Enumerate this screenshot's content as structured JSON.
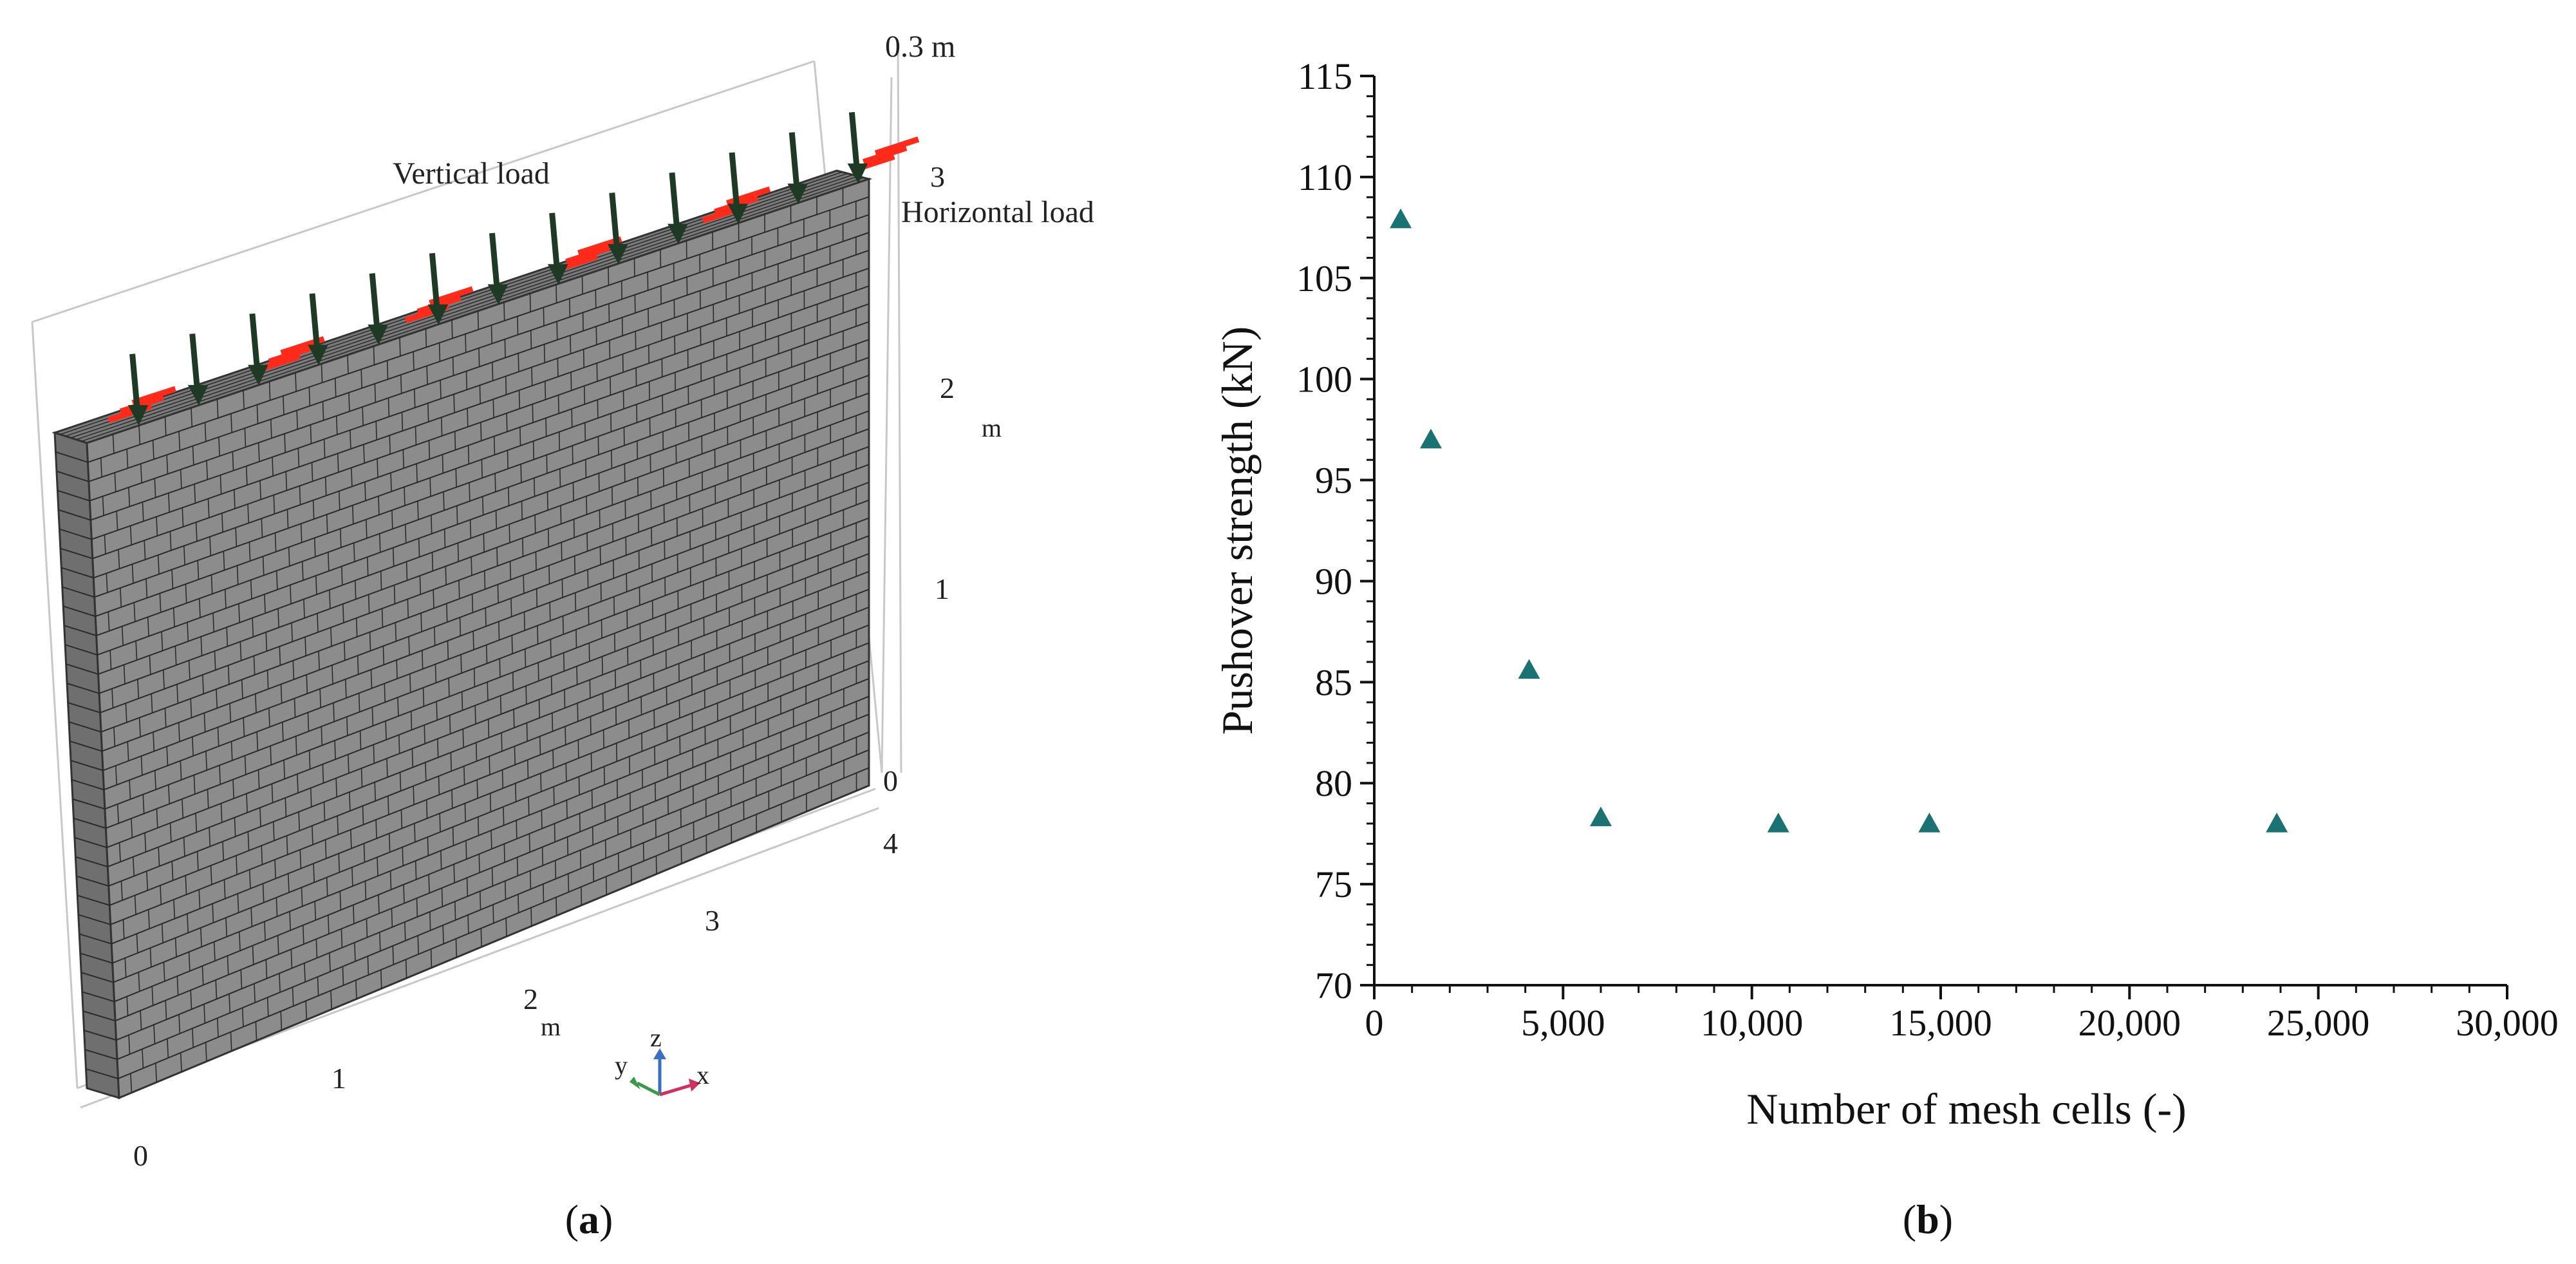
{
  "panel_a": {
    "label": "a",
    "vertical_load_label": "Vertical load",
    "horizontal_load_label": "Horizontal load",
    "thickness_label": "0.3 m",
    "z_ticks": [
      "0",
      "1",
      "2",
      "3"
    ],
    "z_unit": "m",
    "x_ticks": [
      "0",
      "1",
      "2",
      "3",
      "4"
    ],
    "x_unit": "m",
    "triad": {
      "x": "x",
      "y": "y",
      "z": "z"
    },
    "colors": {
      "mesh_face": "#8c8c8c",
      "mesh_lines": "#2b2b2b",
      "load_arrow": "#1e3a24",
      "horizontal_load": "#ff2a1a"
    }
  },
  "panel_b": {
    "label": "b",
    "chart_data": {
      "type": "scatter",
      "title": "",
      "xlabel": "Number of mesh cells (-)",
      "ylabel": "Pushover strength (kN)",
      "xlim": [
        0,
        30000
      ],
      "ylim": [
        70,
        115
      ],
      "x_ticks": [
        0,
        5000,
        10000,
        15000,
        20000,
        25000,
        30000
      ],
      "x_tick_labels": [
        "0",
        "5,000",
        "10,000",
        "15,000",
        "20,000",
        "25,000",
        "30,000"
      ],
      "y_ticks": [
        70,
        75,
        80,
        85,
        90,
        95,
        100,
        105,
        110,
        115
      ],
      "y_tick_labels": [
        "70",
        "75",
        "80",
        "85",
        "90",
        "95",
        "100",
        "105",
        "110",
        "115"
      ],
      "series": [
        {
          "name": "Pushover strength",
          "marker": "triangle",
          "color": "#1a7272",
          "x": [
            700,
            1500,
            4100,
            6000,
            10700,
            14700,
            23900
          ],
          "y": [
            107.9,
            97.0,
            85.6,
            78.3,
            78.0,
            78.0,
            78.0
          ]
        }
      ]
    }
  }
}
